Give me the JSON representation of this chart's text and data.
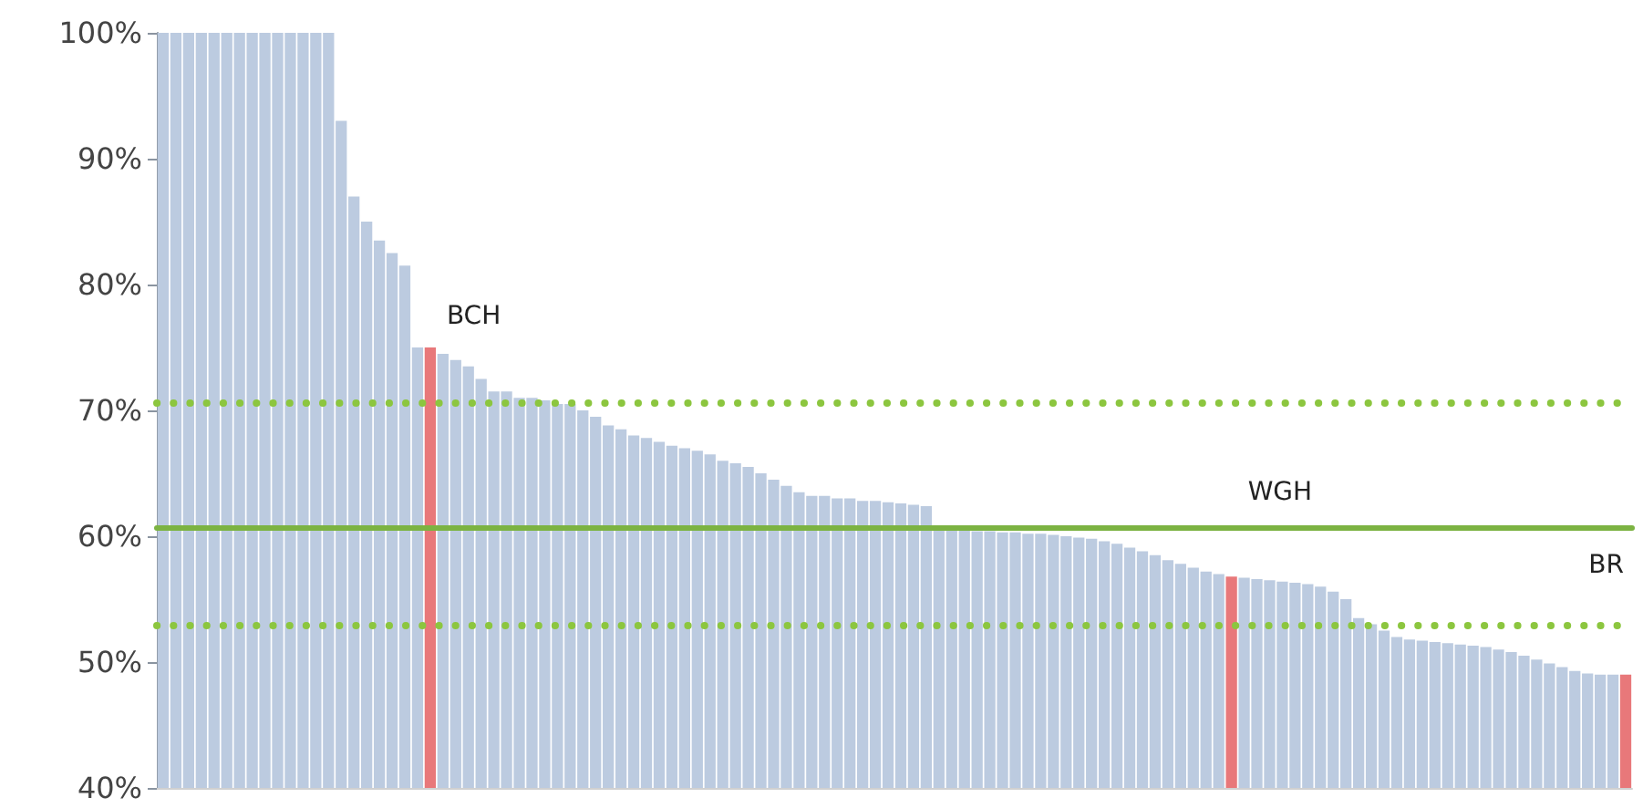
{
  "chart_data": {
    "type": "bar",
    "categories": [
      null,
      null,
      null,
      null,
      null,
      null,
      null,
      null,
      null,
      null,
      null,
      null,
      null,
      null,
      null,
      null,
      null,
      null,
      null,
      null,
      null,
      null,
      null,
      null,
      null,
      null,
      null,
      null,
      null,
      null,
      null,
      null,
      null,
      null,
      null,
      null,
      null,
      null,
      null,
      null,
      null,
      null,
      null,
      null,
      null,
      null,
      null,
      null,
      null,
      null,
      null,
      null,
      null,
      null,
      null,
      null,
      null,
      null,
      null,
      null,
      null,
      null,
      null,
      null,
      null,
      null,
      null,
      null,
      null,
      null,
      null,
      null,
      null,
      null,
      null,
      null,
      null,
      null,
      null,
      null,
      null,
      null,
      null,
      null,
      null,
      null,
      null,
      null,
      null,
      null,
      null,
      null,
      null,
      null,
      null,
      null,
      null,
      null,
      null,
      null,
      null,
      null,
      null,
      null,
      null,
      null,
      null,
      null,
      null,
      null,
      null,
      null,
      null,
      null,
      null,
      null
    ],
    "values": [
      100,
      100,
      100,
      100,
      100,
      100,
      100,
      100,
      100,
      100,
      100,
      100,
      100,
      100,
      93,
      87,
      85,
      83.5,
      82.5,
      81.5,
      75,
      75,
      74.5,
      74,
      73.5,
      72.5,
      71.5,
      71.5,
      71,
      71,
      70.8,
      70.5,
      70.5,
      70,
      69.5,
      68.8,
      68.5,
      68,
      67.8,
      67.5,
      67.2,
      67,
      66.8,
      66.5,
      66,
      65.8,
      65.5,
      65,
      64.5,
      64,
      63.5,
      63.2,
      63.2,
      63,
      63,
      62.8,
      62.8,
      62.7,
      62.6,
      62.5,
      62.4,
      60.6,
      60.5,
      60.5,
      60.4,
      60.4,
      60.3,
      60.3,
      60.2,
      60.2,
      60.1,
      60,
      59.9,
      59.8,
      59.6,
      59.4,
      59.1,
      58.8,
      58.5,
      58.1,
      57.8,
      57.5,
      57.2,
      57,
      56.8,
      56.7,
      56.6,
      56.5,
      56.4,
      56.3,
      56.2,
      56,
      55.6,
      55,
      53.5,
      53,
      52.5,
      52,
      51.8,
      51.7,
      51.6,
      51.5,
      51.4,
      51.3,
      51.2,
      51,
      50.8,
      50.5,
      50.2,
      49.9,
      49.6,
      49.3,
      49.1,
      49,
      49,
      49
    ],
    "colors": [
      "#bccbe0",
      "#bccbe0",
      "#bccbe0",
      "#bccbe0",
      "#bccbe0",
      "#bccbe0",
      "#bccbe0",
      "#bccbe0",
      "#bccbe0",
      "#bccbe0",
      "#bccbe0",
      "#bccbe0",
      "#bccbe0",
      "#bccbe0",
      "#bccbe0",
      "#bccbe0",
      "#bccbe0",
      "#bccbe0",
      "#bccbe0",
      "#bccbe0",
      "#bccbe0",
      "#e8787a",
      "#bccbe0",
      "#bccbe0",
      "#bccbe0",
      "#bccbe0",
      "#bccbe0",
      "#bccbe0",
      "#bccbe0",
      "#bccbe0",
      "#bccbe0",
      "#bccbe0",
      "#bccbe0",
      "#bccbe0",
      "#bccbe0",
      "#bccbe0",
      "#bccbe0",
      "#bccbe0",
      "#bccbe0",
      "#bccbe0",
      "#bccbe0",
      "#bccbe0",
      "#bccbe0",
      "#bccbe0",
      "#bccbe0",
      "#bccbe0",
      "#bccbe0",
      "#bccbe0",
      "#bccbe0",
      "#bccbe0",
      "#bccbe0",
      "#bccbe0",
      "#bccbe0",
      "#bccbe0",
      "#bccbe0",
      "#bccbe0",
      "#bccbe0",
      "#bccbe0",
      "#bccbe0",
      "#bccbe0",
      "#bccbe0",
      "#bccbe0",
      "#bccbe0",
      "#bccbe0",
      "#bccbe0",
      "#bccbe0",
      "#bccbe0",
      "#bccbe0",
      "#bccbe0",
      "#bccbe0",
      "#bccbe0",
      "#bccbe0",
      "#bccbe0",
      "#bccbe0",
      "#bccbe0",
      "#bccbe0",
      "#bccbe0",
      "#bccbe0",
      "#bccbe0",
      "#bccbe0",
      "#bccbe0",
      "#bccbe0",
      "#bccbe0",
      "#bccbe0",
      "#e8787a",
      "#bccbe0",
      "#bccbe0",
      "#bccbe0",
      "#bccbe0",
      "#bccbe0",
      "#bccbe0",
      "#bccbe0",
      "#bccbe0",
      "#bccbe0",
      "#bccbe0",
      "#bccbe0",
      "#bccbe0",
      "#bccbe0",
      "#bccbe0",
      "#bccbe0",
      "#bccbe0",
      "#bccbe0",
      "#bccbe0",
      "#bccbe0",
      "#bccbe0",
      "#bccbe0",
      "#bccbe0",
      "#bccbe0",
      "#bccbe0",
      "#bccbe0",
      "#bccbe0",
      "#bccbe0",
      "#bccbe0",
      "#bccbe0",
      "#bccbe0",
      "#e8787a"
    ],
    "ylim": [
      40,
      100
    ],
    "yticks": [
      {
        "value": 40,
        "label": "40%"
      },
      {
        "value": 50,
        "label": "50%"
      },
      {
        "value": 60,
        "label": "60%"
      },
      {
        "value": 70,
        "label": "70%"
      },
      {
        "value": 80,
        "label": "80%"
      },
      {
        "value": 90,
        "label": "90%"
      },
      {
        "value": 100,
        "label": "100%"
      }
    ],
    "tick_labels": "y",
    "ref_lines": [
      {
        "axis": "y",
        "value": 70.6,
        "color": "#8cc63f",
        "line_style": "dotted"
      },
      {
        "axis": "y",
        "value": 60.7,
        "color": "#7cb342",
        "line_style": "solid"
      },
      {
        "axis": "y",
        "value": 52.9,
        "color": "#8cc63f",
        "line_style": "dotted"
      }
    ],
    "annotations": [
      "BCH",
      "WGH",
      "BR"
    ]
  }
}
